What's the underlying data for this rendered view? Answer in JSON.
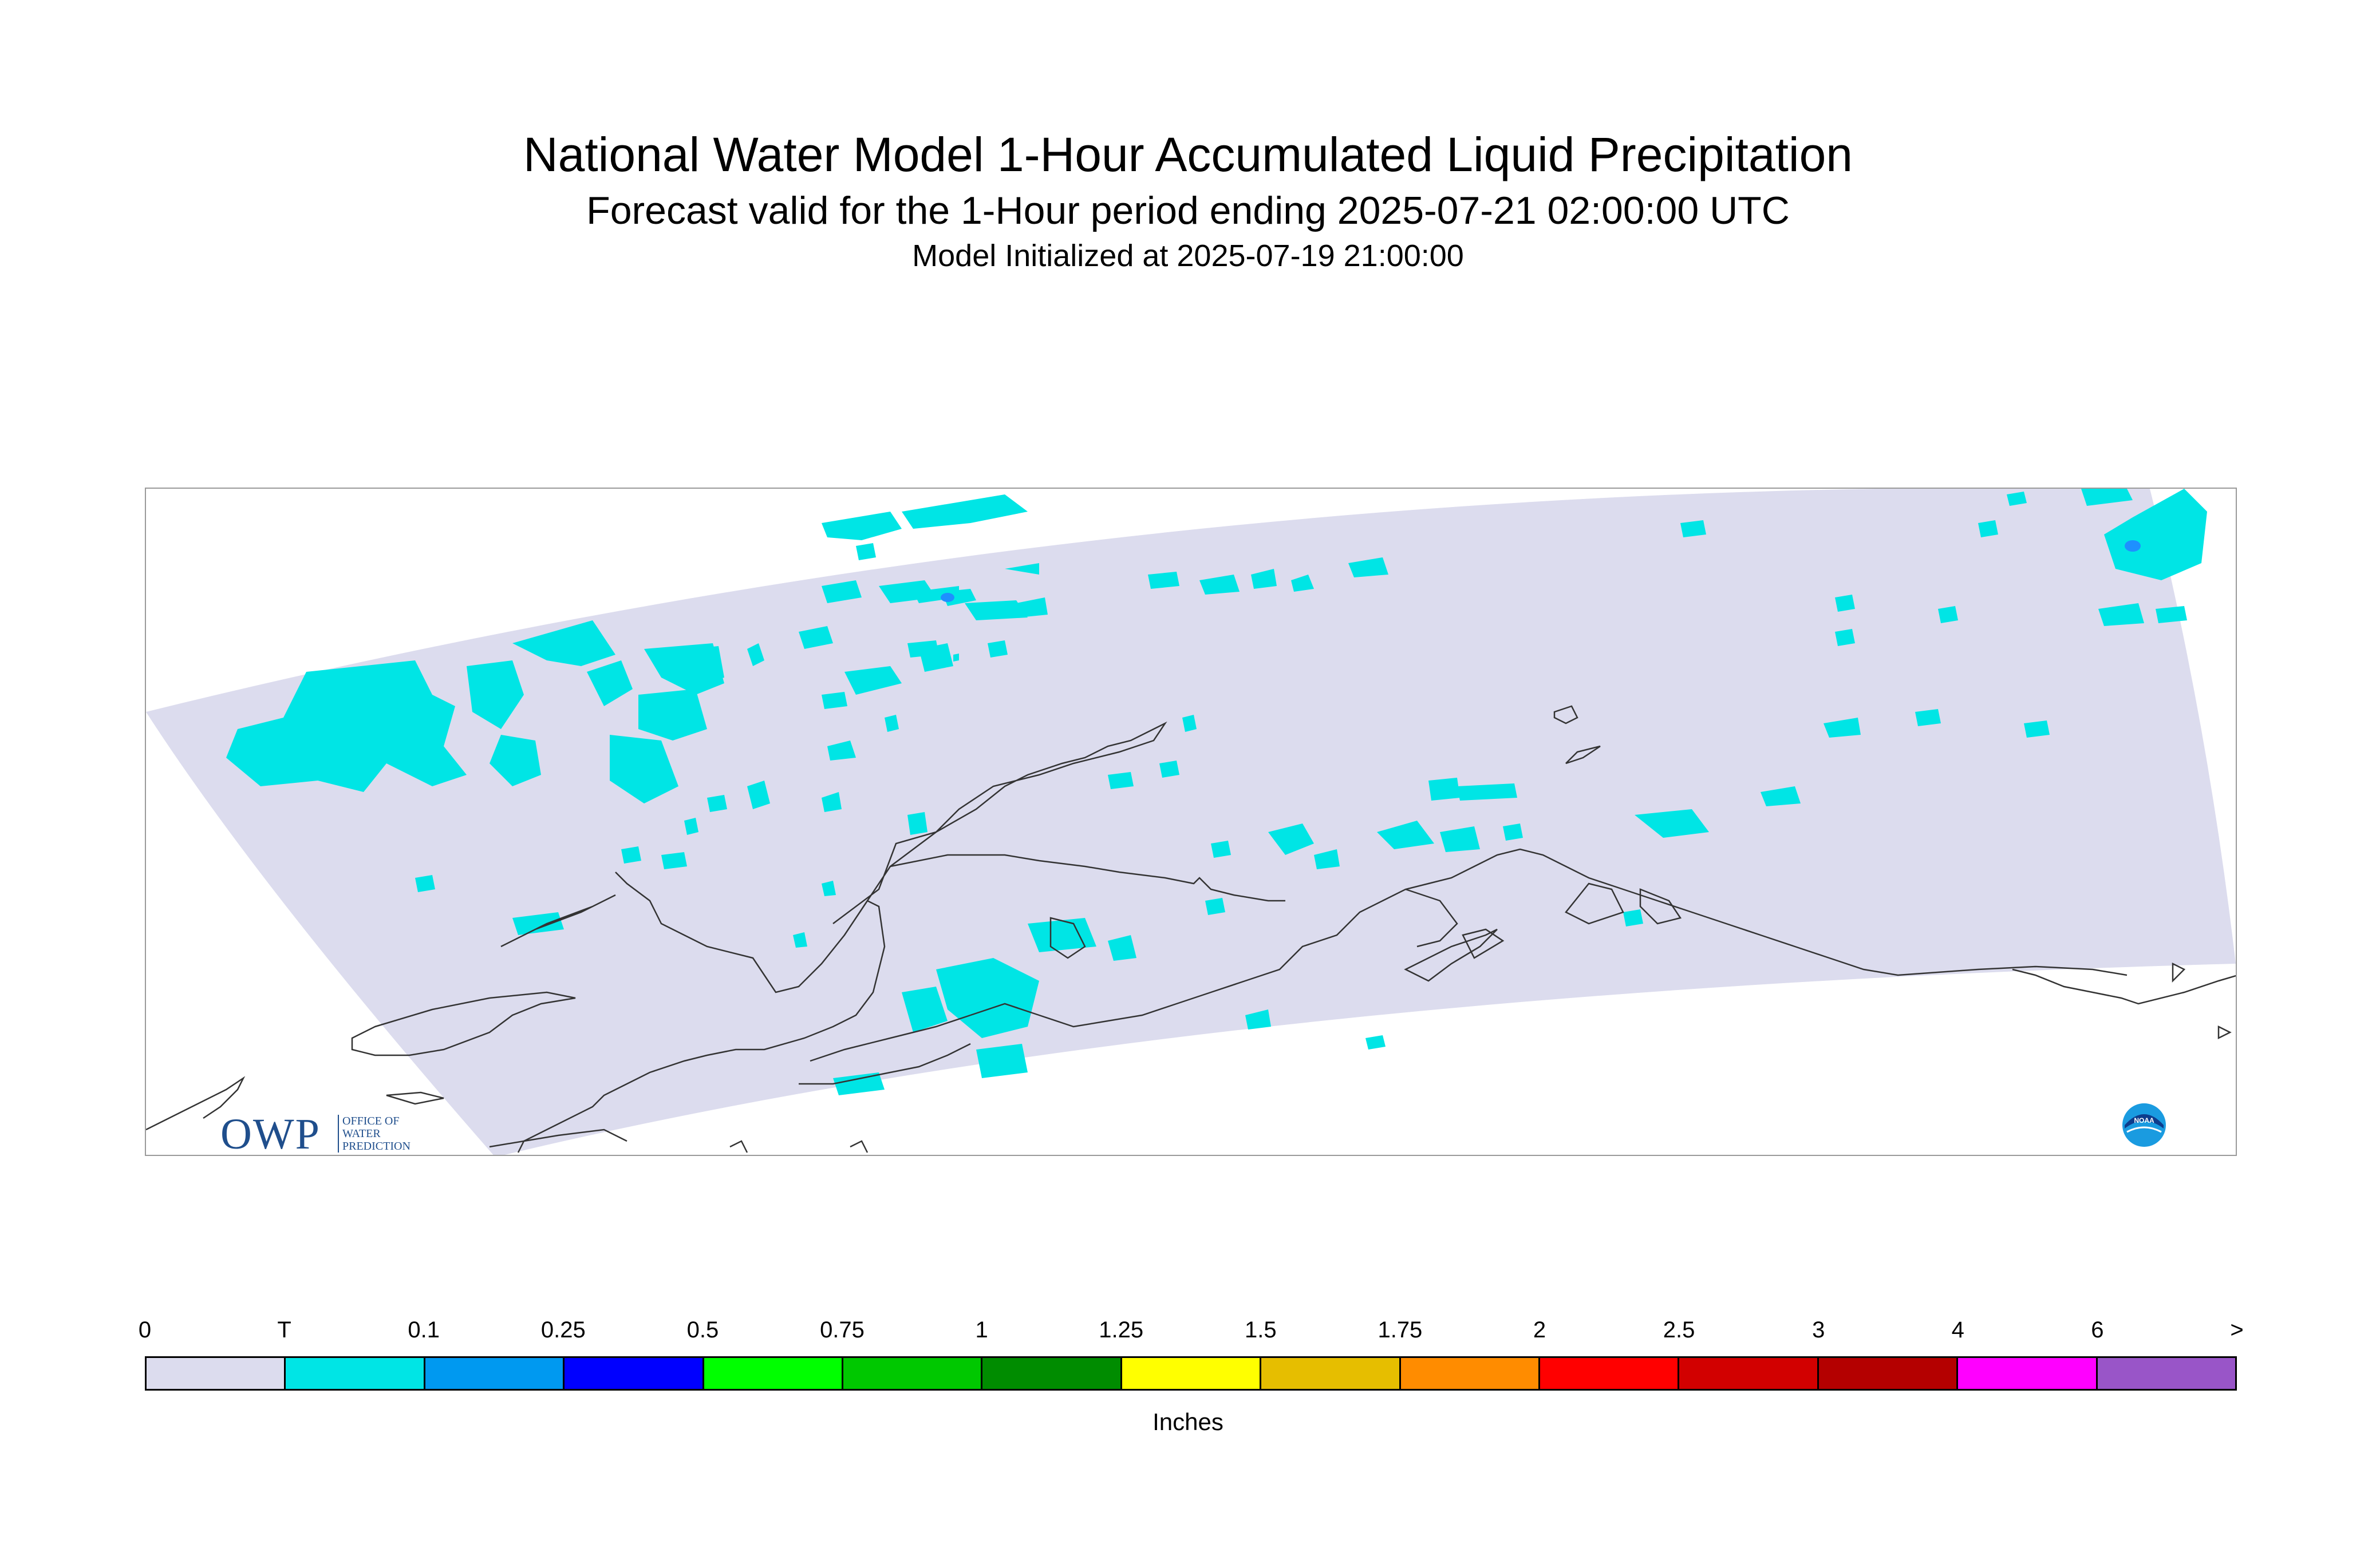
{
  "title": "National Water Model 1-Hour Accumulated Liquid Precipitation",
  "subtitle": "Forecast valid for the 1-Hour period ending 2025-07-21 02:00:00 UTC",
  "init_line": "Model Initialized at 2025-07-19 21:00:00",
  "map": {
    "region": "Alaska",
    "domain_fill_color": "#dcdcee",
    "trace_color": "#00e5e5",
    "light_blue_color": "#1e90ff",
    "coastline_color": "#333333",
    "frame_color": "#9a9a9a"
  },
  "logos": {
    "owp_letters": "OWP",
    "owp_sub": [
      "OFFICE OF",
      "WATER",
      "PREDICTION"
    ],
    "noaa_text": "NOAA"
  },
  "colorbar": {
    "units": "Inches",
    "tick_labels": [
      "0",
      "T",
      "0.1",
      "0.25",
      "0.5",
      "0.75",
      "1",
      "1.25",
      "1.5",
      "1.75",
      "2",
      "2.5",
      "3",
      "4",
      "6",
      ">"
    ],
    "colors": [
      "#dcdcee",
      "#00e5e5",
      "#0099f0",
      "#0000ff",
      "#00ff00",
      "#00c800",
      "#008c00",
      "#ffff00",
      "#e6be00",
      "#ff8c00",
      "#ff0000",
      "#d20000",
      "#b40000",
      "#ff00ff",
      "#9955c8"
    ]
  },
  "chart_data": {
    "type": "heatmap",
    "title": "National Water Model 1-Hour Accumulated Liquid Precipitation",
    "subtitle": "Forecast valid for the 1-Hour period ending 2025-07-21 02:00:00 UTC",
    "colorbar_label": "Inches",
    "levels": [
      "0",
      "T",
      "0.1",
      "0.25",
      "0.5",
      "0.75",
      "1",
      "1.25",
      "1.5",
      "1.75",
      "2",
      "2.5",
      "3",
      "4",
      "6",
      ">"
    ],
    "observed_categories": [
      "0",
      "T",
      "0.1"
    ]
  }
}
